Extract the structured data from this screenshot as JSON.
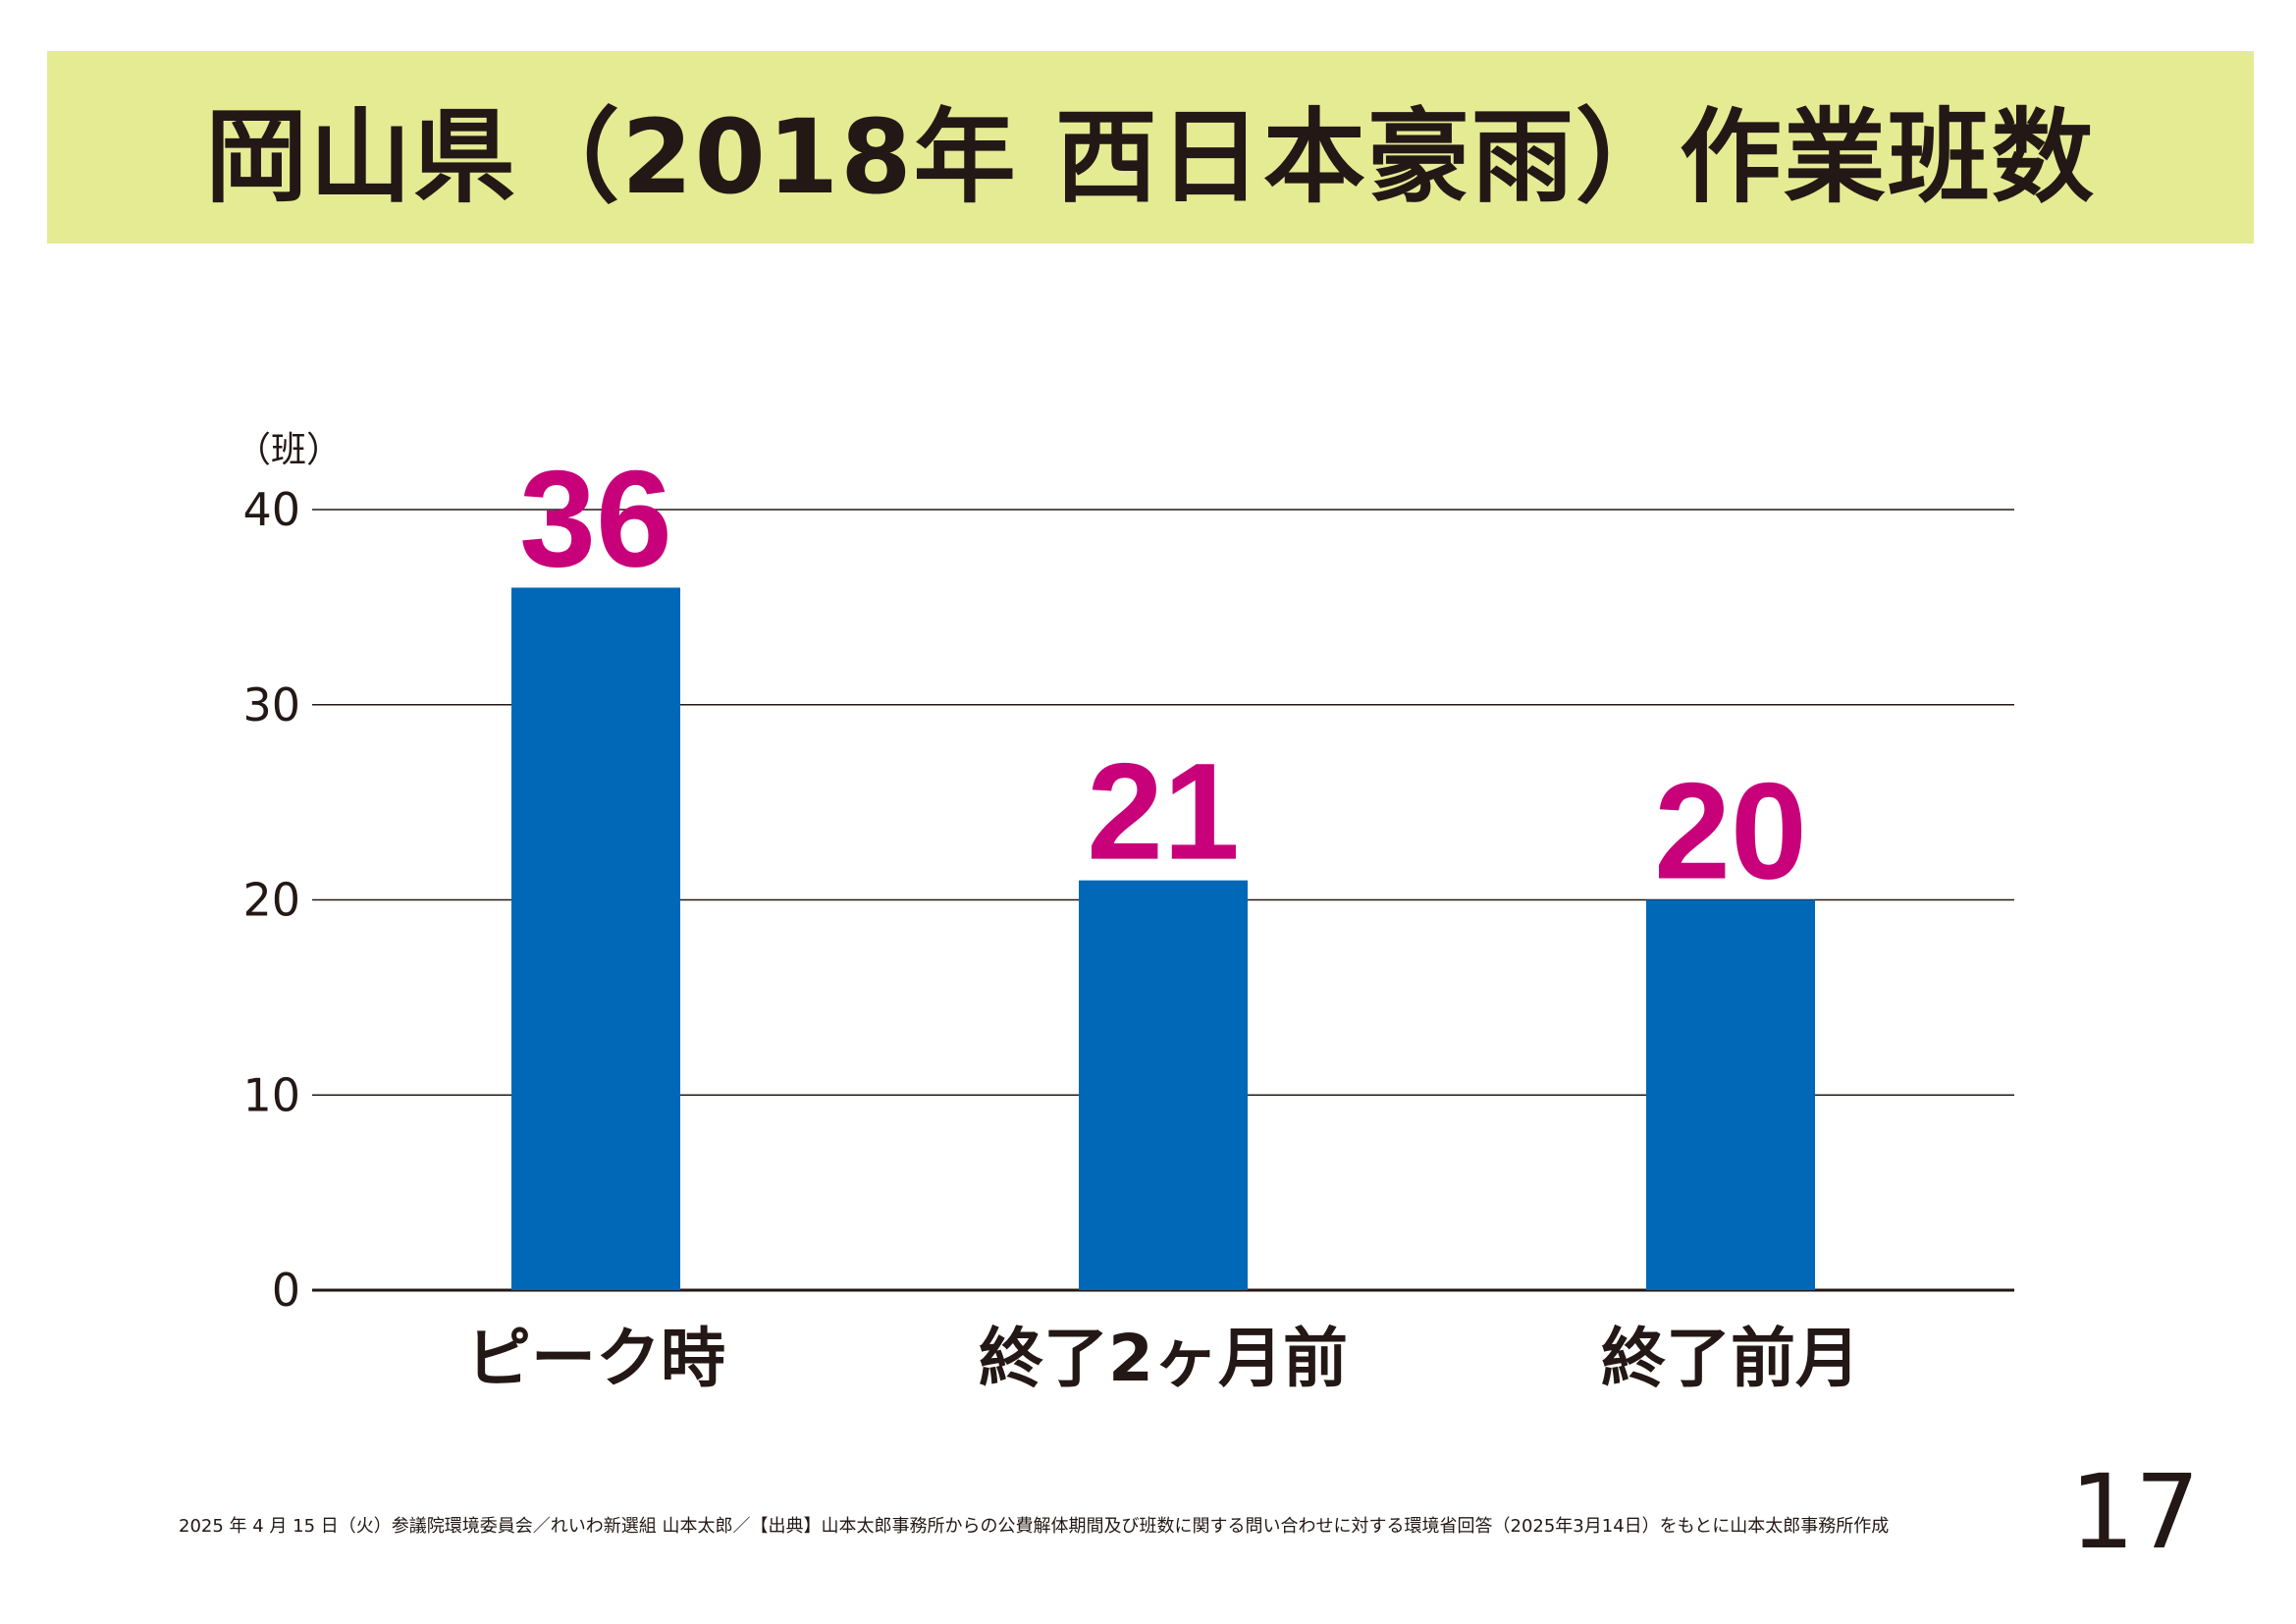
{
  "title": "岡山県（2018年 西日本豪雨）作業班数",
  "chart_data": {
    "type": "bar",
    "unit_label": "（班）",
    "categories": [
      "ピーク時",
      "終了2ヶ月前",
      "終了前月"
    ],
    "values": [
      36,
      21,
      20
    ],
    "ylim": [
      0,
      40
    ],
    "yticks": [
      0,
      10,
      20,
      30,
      40
    ],
    "grid": true,
    "bar_color": "#0068b7",
    "label_color": "#c8007a"
  },
  "footer": {
    "note": "2025 年 4 月 15 日（火）参議院環境委員会／れいわ新選組 山本太郎／【出典】山本太郎事務所からの公費解体期間及び班数に関する問い合わせに対する環境省回答（2025年3月14日）をもとに山本太郎事務所作成",
    "page_number": "17"
  }
}
